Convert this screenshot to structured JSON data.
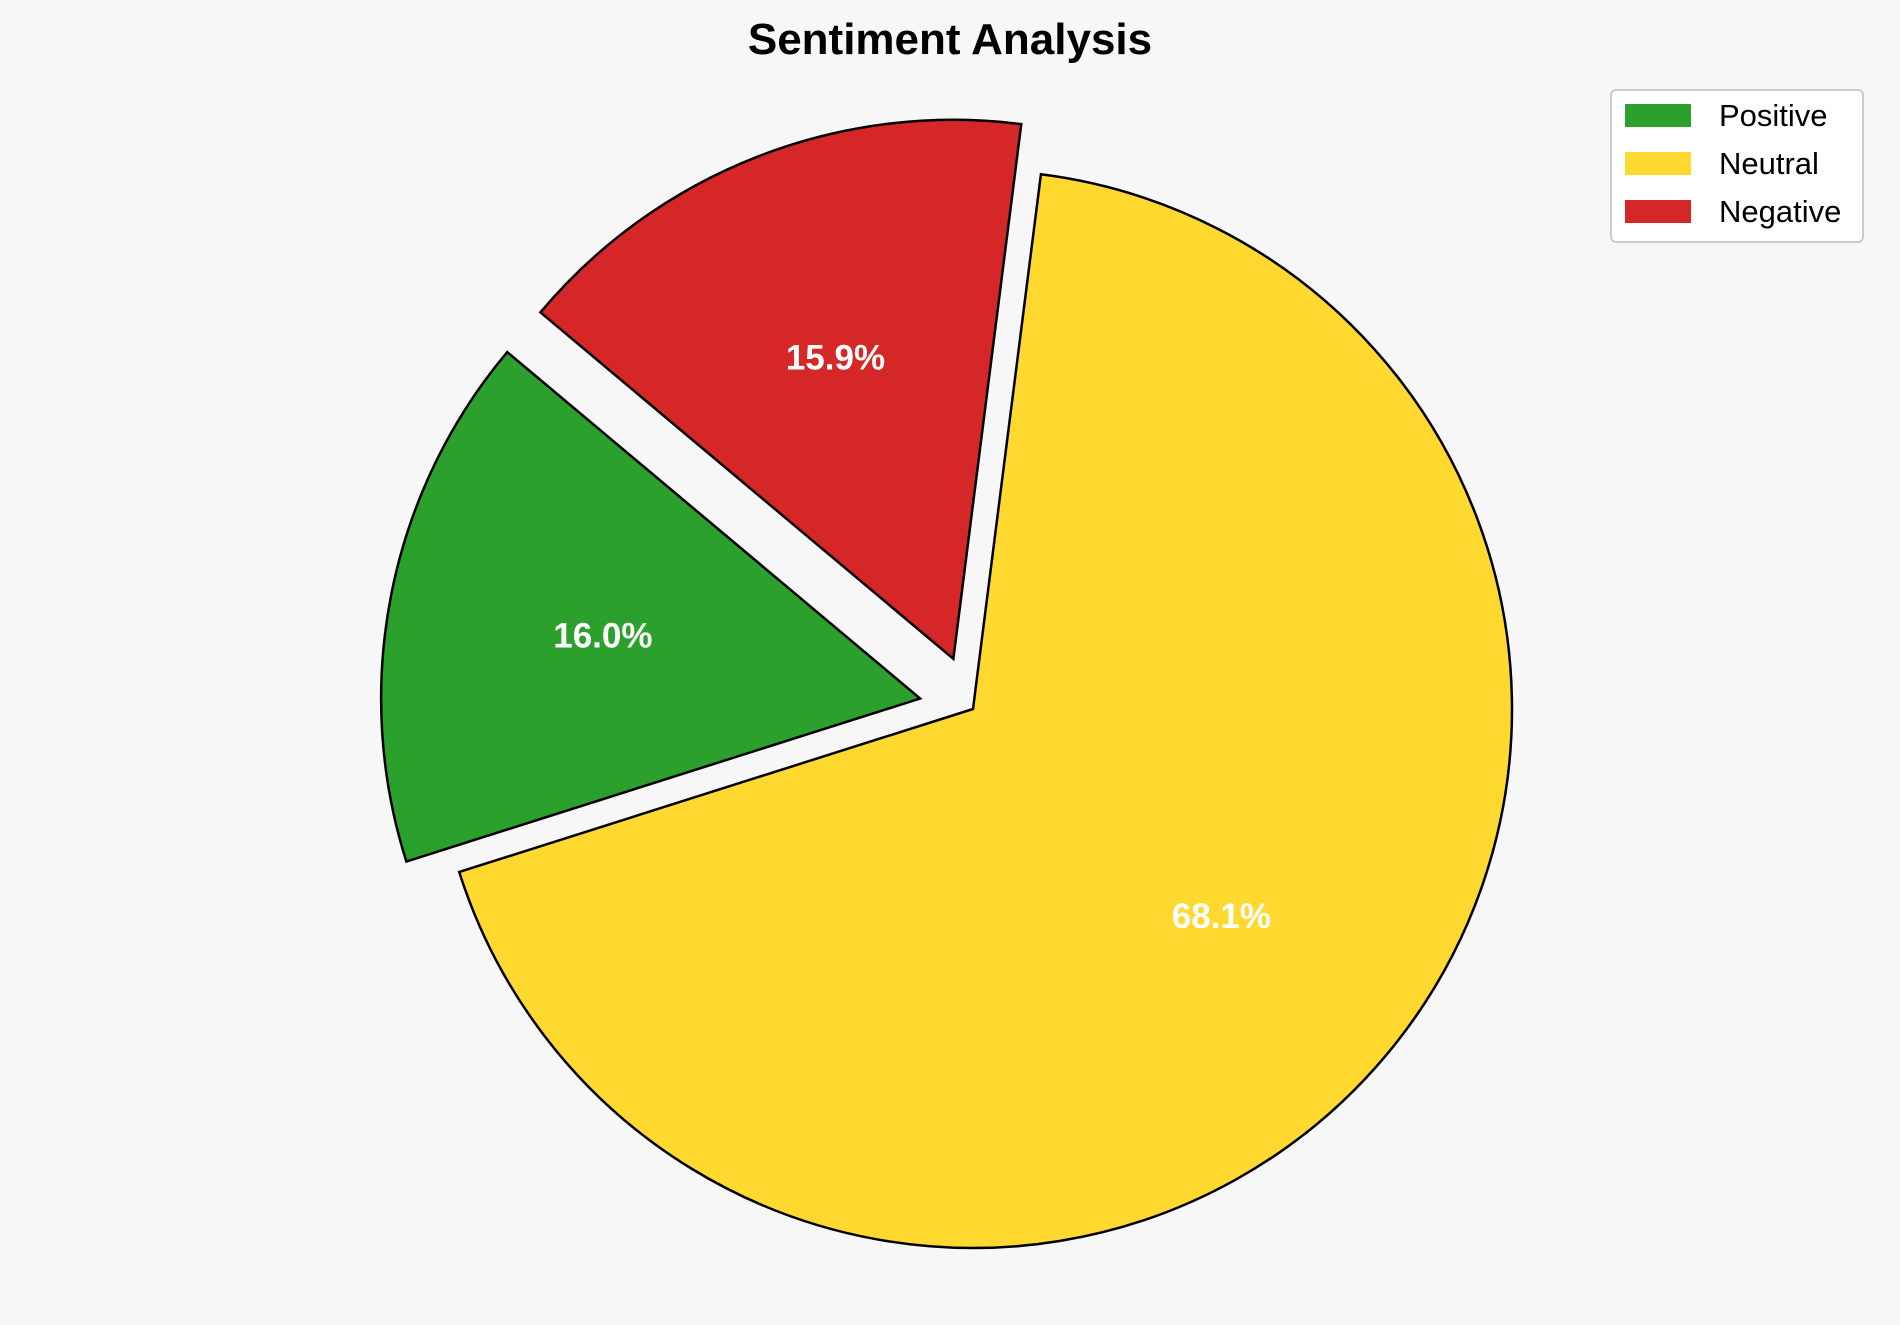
{
  "chart_data": {
    "type": "pie",
    "title": "Sentiment Analysis",
    "categories": [
      "Positive",
      "Neutral",
      "Negative"
    ],
    "values": [
      16.0,
      68.1,
      15.9
    ],
    "labels": [
      "16.0%",
      "68.1%",
      "15.9%"
    ],
    "colors": [
      "#2ca02c",
      "#ffd92f",
      "#d62728"
    ],
    "exploded": [
      true,
      false,
      true
    ],
    "legend_position": "top-right",
    "edge_color": "#000000"
  }
}
